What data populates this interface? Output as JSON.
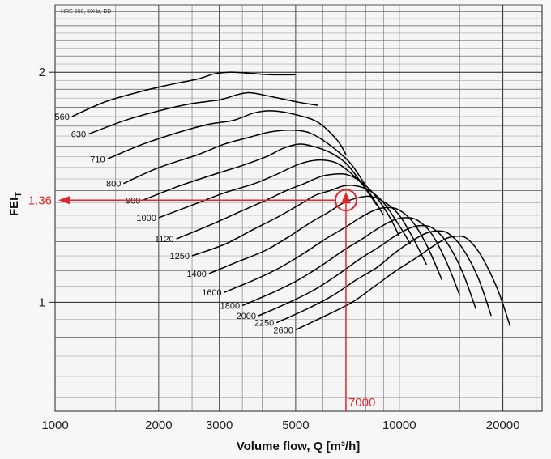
{
  "chart_data": {
    "type": "line",
    "caption": "HRE 560, 50Hz, BD",
    "xlabel": "Volume flow, Q [m³/h]",
    "ylabel_main": "FEI",
    "ylabel_sub": "T",
    "x_scale": "log",
    "y_scale": "log",
    "xlim": [
      1000,
      26000
    ],
    "ylim": [
      0.72,
      2.45
    ],
    "x_ticks": [
      {
        "value": 1000,
        "label": "1000"
      },
      {
        "value": 2000,
        "label": "2000"
      },
      {
        "value": 3000,
        "label": "3000"
      },
      {
        "value": 5000,
        "label": "5000"
      },
      {
        "value": 10000,
        "label": "10000"
      },
      {
        "value": 20000,
        "label": "20000"
      }
    ],
    "y_ticks": [
      {
        "value": 2,
        "label": "2"
      },
      {
        "value": 1,
        "label": "1"
      }
    ],
    "grid": true,
    "operating_point": {
      "x": 7000,
      "y": 1.36,
      "x_label": "7000",
      "y_label": "1.36",
      "color": "#e3262b"
    },
    "series": [
      {
        "name": "560",
        "points": [
          [
            1120,
            1.75
          ],
          [
            1400,
            1.83
          ],
          [
            1800,
            1.89
          ],
          [
            2200,
            1.93
          ],
          [
            2600,
            1.96
          ],
          [
            2900,
            1.99
          ],
          [
            3200,
            2.0
          ],
          [
            3600,
            1.995
          ],
          [
            4200,
            1.985
          ],
          [
            5000,
            1.985
          ]
        ]
      },
      {
        "name": "630",
        "points": [
          [
            1250,
            1.66
          ],
          [
            1600,
            1.73
          ],
          [
            2000,
            1.78
          ],
          [
            2500,
            1.82
          ],
          [
            3000,
            1.84
          ],
          [
            3400,
            1.87
          ],
          [
            3700,
            1.88
          ],
          [
            4200,
            1.86
          ],
          [
            5000,
            1.83
          ],
          [
            5800,
            1.81
          ]
        ]
      },
      {
        "name": "710",
        "points": [
          [
            1420,
            1.54
          ],
          [
            1800,
            1.61
          ],
          [
            2300,
            1.67
          ],
          [
            2800,
            1.71
          ],
          [
            3300,
            1.73
          ],
          [
            3800,
            1.77
          ],
          [
            4300,
            1.78
          ],
          [
            5000,
            1.76
          ],
          [
            5800,
            1.72
          ],
          [
            6600,
            1.63
          ],
          [
            7000,
            1.56
          ]
        ]
      },
      {
        "name": "800",
        "points": [
          [
            1580,
            1.43
          ],
          [
            2000,
            1.5
          ],
          [
            2600,
            1.56
          ],
          [
            3100,
            1.61
          ],
          [
            3600,
            1.64
          ],
          [
            4200,
            1.67
          ],
          [
            4800,
            1.68
          ],
          [
            5400,
            1.67
          ],
          [
            6000,
            1.63
          ],
          [
            6800,
            1.56
          ],
          [
            7300,
            1.51
          ],
          [
            8000,
            1.42
          ]
        ]
      },
      {
        "name": "900",
        "points": [
          [
            1800,
            1.36
          ],
          [
            2300,
            1.42
          ],
          [
            2900,
            1.47
          ],
          [
            3500,
            1.51
          ],
          [
            4100,
            1.55
          ],
          [
            4600,
            1.59
          ],
          [
            5100,
            1.61
          ],
          [
            5600,
            1.6
          ],
          [
            6300,
            1.57
          ],
          [
            7000,
            1.52
          ],
          [
            7700,
            1.44
          ],
          [
            8600,
            1.34
          ]
        ]
      },
      {
        "name": "1000",
        "points": [
          [
            2000,
            1.29
          ],
          [
            2500,
            1.34
          ],
          [
            3100,
            1.39
          ],
          [
            3800,
            1.43
          ],
          [
            4400,
            1.47
          ],
          [
            5000,
            1.51
          ],
          [
            5500,
            1.53
          ],
          [
            6000,
            1.535
          ],
          [
            6600,
            1.52
          ],
          [
            7300,
            1.47
          ],
          [
            8100,
            1.4
          ],
          [
            9000,
            1.3
          ]
        ]
      },
      {
        "name": "1120",
        "points": [
          [
            2250,
            1.21
          ],
          [
            2800,
            1.26
          ],
          [
            3400,
            1.31
          ],
          [
            4100,
            1.36
          ],
          [
            4700,
            1.4
          ],
          [
            5300,
            1.43
          ],
          [
            5900,
            1.46
          ],
          [
            6400,
            1.47
          ],
          [
            7000,
            1.47
          ],
          [
            7700,
            1.44
          ],
          [
            8500,
            1.38
          ],
          [
            9400,
            1.29
          ],
          [
            10000,
            1.22
          ]
        ]
      },
      {
        "name": "1250",
        "points": [
          [
            2500,
            1.15
          ],
          [
            3100,
            1.19
          ],
          [
            3700,
            1.24
          ],
          [
            4400,
            1.29
          ],
          [
            5100,
            1.34
          ],
          [
            5700,
            1.38
          ],
          [
            6300,
            1.4
          ],
          [
            6900,
            1.42
          ],
          [
            7500,
            1.42
          ],
          [
            8200,
            1.4
          ],
          [
            9000,
            1.35
          ],
          [
            10000,
            1.26
          ],
          [
            10800,
            1.19
          ]
        ]
      },
      {
        "name": "1400",
        "points": [
          [
            2800,
            1.09
          ],
          [
            3400,
            1.13
          ],
          [
            4100,
            1.17
          ],
          [
            4800,
            1.22
          ],
          [
            5500,
            1.27
          ],
          [
            6200,
            1.31
          ],
          [
            6900,
            1.35
          ],
          [
            7600,
            1.37
          ],
          [
            8300,
            1.375
          ],
          [
            9100,
            1.35
          ],
          [
            10000,
            1.3
          ],
          [
            11000,
            1.21
          ],
          [
            12000,
            1.12
          ]
        ]
      },
      {
        "name": "1600",
        "points": [
          [
            3100,
            1.03
          ],
          [
            3800,
            1.07
          ],
          [
            4500,
            1.11
          ],
          [
            5300,
            1.16
          ],
          [
            6100,
            1.21
          ],
          [
            6900,
            1.25
          ],
          [
            7700,
            1.29
          ],
          [
            8500,
            1.32
          ],
          [
            9200,
            1.33
          ],
          [
            10000,
            1.32
          ],
          [
            11000,
            1.27
          ],
          [
            12100,
            1.18
          ],
          [
            13300,
            1.07
          ]
        ]
      },
      {
        "name": "1800",
        "points": [
          [
            3500,
            0.99
          ],
          [
            4300,
            1.03
          ],
          [
            5100,
            1.07
          ],
          [
            6000,
            1.12
          ],
          [
            6900,
            1.17
          ],
          [
            7800,
            1.21
          ],
          [
            8700,
            1.25
          ],
          [
            9600,
            1.28
          ],
          [
            10400,
            1.29
          ],
          [
            11300,
            1.28
          ],
          [
            12400,
            1.23
          ],
          [
            13700,
            1.13
          ],
          [
            15000,
            1.02
          ]
        ]
      },
      {
        "name": "2000",
        "points": [
          [
            3900,
            0.96
          ],
          [
            4800,
            1.0
          ],
          [
            5700,
            1.04
          ],
          [
            6700,
            1.09
          ],
          [
            7700,
            1.14
          ],
          [
            8700,
            1.18
          ],
          [
            9700,
            1.22
          ],
          [
            10700,
            1.25
          ],
          [
            11600,
            1.26
          ],
          [
            12500,
            1.25
          ],
          [
            13700,
            1.2
          ],
          [
            15200,
            1.1
          ],
          [
            16700,
            0.98
          ]
        ]
      },
      {
        "name": "2250",
        "points": [
          [
            4400,
            0.94
          ],
          [
            5400,
            0.98
          ],
          [
            6400,
            1.02
          ],
          [
            7500,
            1.07
          ],
          [
            8600,
            1.11
          ],
          [
            9700,
            1.16
          ],
          [
            10800,
            1.2
          ],
          [
            11900,
            1.23
          ],
          [
            12900,
            1.24
          ],
          [
            13900,
            1.23
          ],
          [
            15200,
            1.18
          ],
          [
            16900,
            1.08
          ],
          [
            18500,
            0.96
          ]
        ]
      },
      {
        "name": "2600",
        "points": [
          [
            5000,
            0.92
          ],
          [
            6100,
            0.96
          ],
          [
            7300,
            1.0
          ],
          [
            8500,
            1.05
          ],
          [
            9800,
            1.1
          ],
          [
            11100,
            1.14
          ],
          [
            12400,
            1.18
          ],
          [
            13600,
            1.21
          ],
          [
            14700,
            1.22
          ],
          [
            15800,
            1.21
          ],
          [
            17300,
            1.15
          ],
          [
            19300,
            1.04
          ],
          [
            21000,
            0.93
          ]
        ]
      }
    ]
  }
}
